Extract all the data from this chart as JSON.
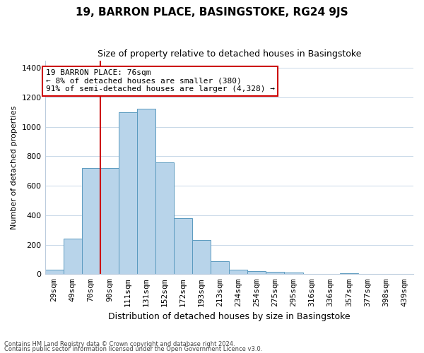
{
  "title": "19, BARRON PLACE, BASINGSTOKE, RG24 9JS",
  "subtitle": "Size of property relative to detached houses in Basingstoke",
  "xlabel": "Distribution of detached houses by size in Basingstoke",
  "ylabel": "Number of detached properties",
  "bin_labels": [
    "29sqm",
    "49sqm",
    "70sqm",
    "90sqm",
    "111sqm",
    "131sqm",
    "152sqm",
    "172sqm",
    "193sqm",
    "213sqm",
    "234sqm",
    "254sqm",
    "275sqm",
    "295sqm",
    "316sqm",
    "336sqm",
    "357sqm",
    "377sqm",
    "398sqm",
    "439sqm"
  ],
  "bin_values": [
    30,
    240,
    720,
    720,
    1100,
    1120,
    760,
    380,
    230,
    90,
    30,
    20,
    15,
    10,
    0,
    0,
    5,
    0,
    0,
    0
  ],
  "bar_color": "#b8d4ea",
  "bar_edge_color": "#5a9abf",
  "property_line_color": "#cc0000",
  "property_line_bin": 2.5,
  "annotation_text": "19 BARRON PLACE: 76sqm\n← 8% of detached houses are smaller (380)\n91% of semi-detached houses are larger (4,328) →",
  "annotation_box_color": "#ffffff",
  "annotation_box_edge": "#cc0000",
  "ylim": [
    0,
    1450
  ],
  "yticks": [
    0,
    200,
    400,
    600,
    800,
    1000,
    1200,
    1400
  ],
  "footnote1": "Contains HM Land Registry data © Crown copyright and database right 2024.",
  "footnote2": "Contains public sector information licensed under the Open Government Licence v3.0.",
  "background_color": "#ffffff",
  "grid_color": "#c8d8e8",
  "title_fontsize": 11,
  "subtitle_fontsize": 9,
  "xlabel_fontsize": 9,
  "ylabel_fontsize": 8,
  "tick_fontsize": 8,
  "annot_fontsize": 8
}
